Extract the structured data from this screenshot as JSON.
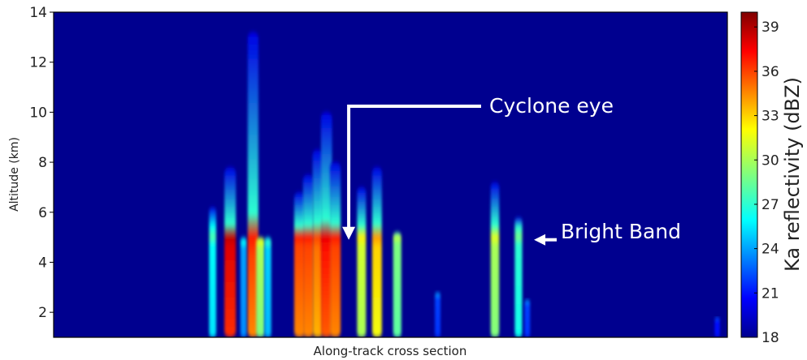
{
  "chart_data": {
    "type": "heatmap",
    "title": "",
    "xlabel": "Along-track cross section",
    "ylabel": "Altitude (km)",
    "ylim": [
      1,
      14
    ],
    "yticks": [
      2,
      4,
      6,
      8,
      10,
      12,
      14
    ],
    "background_color": "#00008f",
    "colorbar": {
      "label": "Ka reflectivity (dBZ)",
      "range": [
        18,
        40
      ],
      "ticks": [
        18,
        21,
        24,
        27,
        30,
        33,
        36,
        39
      ],
      "colormap": "jet"
    },
    "columns": [
      {
        "x": 0.236,
        "top_km": 6.2,
        "peak_dbz": 26
      },
      {
        "x": 0.262,
        "top_km": 7.8,
        "peak_dbz": 38
      },
      {
        "x": 0.282,
        "top_km": 5.0,
        "peak_dbz": 24
      },
      {
        "x": 0.296,
        "top_km": 13.2,
        "peak_dbz": 36
      },
      {
        "x": 0.307,
        "top_km": 5.0,
        "peak_dbz": 30
      },
      {
        "x": 0.318,
        "top_km": 5.0,
        "peak_dbz": 25
      },
      {
        "x": 0.365,
        "top_km": 6.8,
        "peak_dbz": 36
      },
      {
        "x": 0.378,
        "top_km": 7.5,
        "peak_dbz": 36
      },
      {
        "x": 0.392,
        "top_km": 8.5,
        "peak_dbz": 35
      },
      {
        "x": 0.405,
        "top_km": 10.0,
        "peak_dbz": 37
      },
      {
        "x": 0.418,
        "top_km": 8.0,
        "peak_dbz": 36
      },
      {
        "x": 0.457,
        "top_km": 7.0,
        "peak_dbz": 31
      },
      {
        "x": 0.48,
        "top_km": 7.8,
        "peak_dbz": 33
      },
      {
        "x": 0.51,
        "top_km": 5.2,
        "peak_dbz": 29
      },
      {
        "x": 0.57,
        "top_km": 2.8,
        "peak_dbz": 22
      },
      {
        "x": 0.655,
        "top_km": 7.2,
        "peak_dbz": 30
      },
      {
        "x": 0.69,
        "top_km": 5.8,
        "peak_dbz": 27
      },
      {
        "x": 0.703,
        "top_km": 2.5,
        "peak_dbz": 22
      },
      {
        "x": 0.985,
        "top_km": 1.8,
        "peak_dbz": 21
      }
    ],
    "bright_band_km": 5.0,
    "annotations": [
      {
        "text": "Cyclone eye",
        "arrow_target": {
          "x": 0.438,
          "y_km": 4.9
        }
      },
      {
        "text": "Bright Band",
        "arrow_target": {
          "x": 0.713,
          "y_km": 4.9
        }
      }
    ]
  }
}
